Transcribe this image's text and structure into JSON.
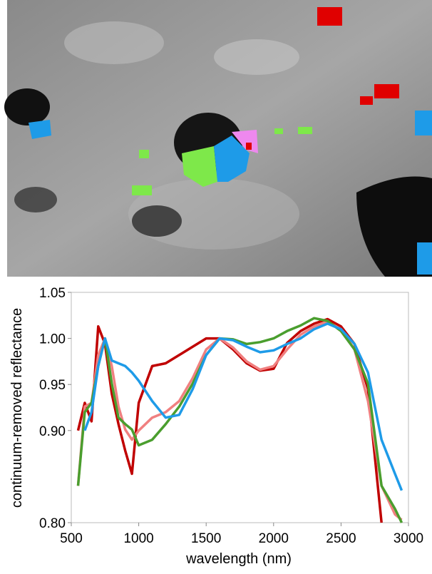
{
  "chart_data": {
    "type": "line",
    "x_label": "wavelength (nm)",
    "y_label": "continuum-removed reflectance",
    "x": [
      550,
      600,
      650,
      700,
      750,
      800,
      850,
      900,
      950,
      1000,
      1100,
      1200,
      1300,
      1400,
      1500,
      1600,
      1700,
      1800,
      1900,
      2000,
      2100,
      2200,
      2300,
      2400,
      2500,
      2600,
      2700,
      2800,
      2900,
      2950
    ],
    "series": [
      {
        "color": "#c00000",
        "values": [
          0.9,
          0.93,
          0.91,
          1.013,
          0.994,
          0.94,
          0.907,
          0.878,
          0.853,
          0.93,
          0.97,
          0.973,
          0.982,
          0.991,
          1.0,
          1.0,
          0.988,
          0.973,
          0.965,
          0.967,
          0.995,
          1.008,
          1.016,
          1.021,
          1.013,
          0.994,
          0.945,
          0.8,
          null,
          null
        ]
      },
      {
        "color": "#f08080",
        "values": [
          0.84,
          0.926,
          0.93,
          0.982,
          1.0,
          0.97,
          0.926,
          0.901,
          0.89,
          0.9,
          0.914,
          0.92,
          0.932,
          0.957,
          0.988,
          1.0,
          0.99,
          0.975,
          0.966,
          0.97,
          0.988,
          1.004,
          1.013,
          1.018,
          1.01,
          0.988,
          0.932,
          0.84,
          0.809,
          0.803
        ]
      },
      {
        "color": "#4a9e2e",
        "values": [
          0.84,
          0.92,
          0.93,
          0.97,
          1.0,
          0.951,
          0.914,
          0.907,
          0.901,
          0.884,
          0.89,
          0.907,
          0.926,
          0.951,
          0.982,
          1.0,
          0.999,
          0.994,
          0.996,
          1.0,
          1.008,
          1.014,
          1.022,
          1.019,
          1.008,
          0.988,
          0.951,
          0.84,
          0.815,
          0.8
        ]
      },
      {
        "color": "#1e9be8",
        "values": [
          null,
          0.9,
          0.92,
          0.97,
          1.0,
          0.976,
          0.973,
          0.97,
          0.963,
          0.954,
          0.932,
          0.914,
          0.917,
          0.945,
          0.982,
          1.0,
          0.998,
          0.991,
          0.985,
          0.987,
          0.994,
          1.0,
          1.01,
          1.016,
          1.01,
          0.994,
          0.963,
          0.89,
          0.853,
          0.835
        ]
      }
    ],
    "xlim": [
      500,
      3000
    ],
    "xticks": [
      500,
      1000,
      1500,
      2000,
      2500,
      3000
    ],
    "ylim": [
      0.8,
      1.05
    ],
    "yticks": [
      {
        "value": 0.8,
        "label": "0.80"
      },
      {
        "value": 0.9,
        "label": "0.90"
      },
      {
        "value": 0.95,
        "label": "0.95"
      },
      {
        "value": 1.0,
        "label": "1.00"
      },
      {
        "value": 1.05,
        "label": "1.05"
      }
    ],
    "grid": false
  }
}
